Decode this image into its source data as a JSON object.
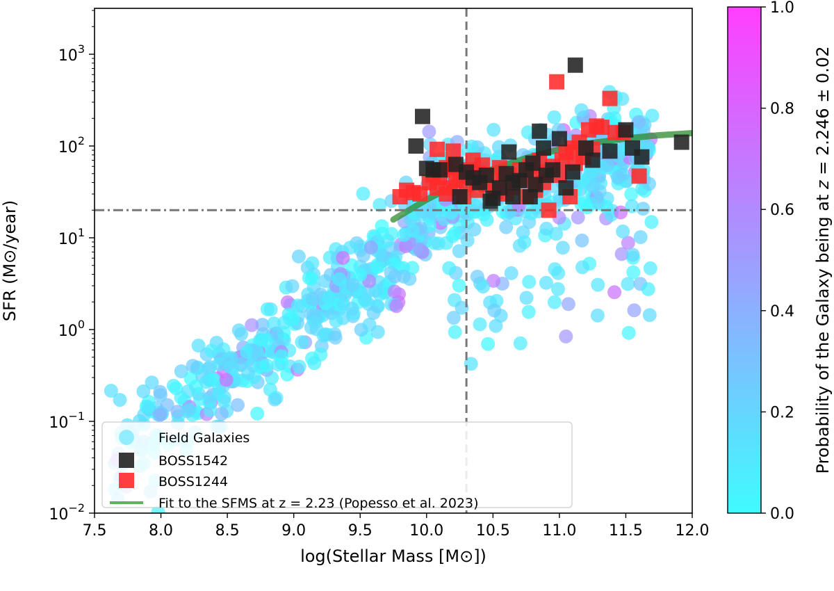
{
  "chart_data": {
    "type": "scatter",
    "xlabel": "log(Stellar Mass [M⊙])",
    "ylabel": "SFR (M⊙/year)",
    "xlim": [
      7.5,
      12.0
    ],
    "ylim_log10": [
      -2,
      3.5
    ],
    "yscale": "log",
    "x_ticks": [
      "7.5",
      "8.0",
      "8.5",
      "9.0",
      "9.5",
      "10.0",
      "10.5",
      "11.0",
      "11.5",
      "12.0"
    ],
    "y_ticks": [
      {
        "base": "10",
        "exp": "−2"
      },
      {
        "base": "10",
        "exp": "−1"
      },
      {
        "base": "10",
        "exp": "0"
      },
      {
        "base": "10",
        "exp": "1"
      },
      {
        "base": "10",
        "exp": "2"
      },
      {
        "base": "10",
        "exp": "3"
      }
    ],
    "reference_lines": {
      "vertical_mass_cut_logM": 10.3,
      "horizontal_sfr_cut": 20
    },
    "colorbar": {
      "label_prefix": "Probability of the Galaxy being at ",
      "label_z": "z",
      "label_suffix": " = 2.246 ± 0.02",
      "range": [
        0.0,
        1.0
      ],
      "ticks": [
        "0.0",
        "0.2",
        "0.4",
        "0.6",
        "0.8",
        "1.0"
      ],
      "color_low": "#3ffbff",
      "color_high": "#ff3fff"
    },
    "legend": {
      "placement": "lower-left",
      "entries": [
        {
          "label": "Field Galaxies",
          "marker": "circle",
          "color": "#7de8ff"
        },
        {
          "label": "BOSS1542",
          "marker": "square",
          "color": "#222222"
        },
        {
          "label": "BOSS1244",
          "marker": "square",
          "color": "#ff2a2a"
        },
        {
          "label": "Fit to the SFMS at z = 2.23 (Popesso et al. 2023)",
          "marker": "line",
          "color": "#5fb35a"
        }
      ]
    },
    "sfms_fit": {
      "label": "Fit to the SFMS at z = 2.23 (Popesso et al. 2023)",
      "color": "#2e8b2e",
      "x_range": [
        9.75,
        12.0
      ],
      "x": [
        9.75,
        10.0,
        10.25,
        10.5,
        10.75,
        11.0,
        11.25,
        11.5,
        11.75,
        12.0
      ],
      "y": [
        15.8,
        26.0,
        40.0,
        56.0,
        74.0,
        92.0,
        108.0,
        121.0,
        131.0,
        138.0
      ]
    },
    "series": [
      {
        "name": "BOSS1542",
        "marker": "square",
        "color": "#222222",
        "points": [
          [
            9.92,
            100
          ],
          [
            9.97,
            210
          ],
          [
            10.0,
            57
          ],
          [
            10.05,
            55
          ],
          [
            10.1,
            55
          ],
          [
            10.22,
            63
          ],
          [
            10.3,
            52
          ],
          [
            10.35,
            45
          ],
          [
            10.4,
            40
          ],
          [
            10.45,
            48
          ],
          [
            10.5,
            27
          ],
          [
            10.55,
            35
          ],
          [
            10.6,
            50
          ],
          [
            10.62,
            86
          ],
          [
            10.65,
            40
          ],
          [
            10.7,
            42
          ],
          [
            10.75,
            55
          ],
          [
            10.78,
            28
          ],
          [
            10.8,
            65
          ],
          [
            10.82,
            38
          ],
          [
            10.85,
            145
          ],
          [
            10.88,
            95
          ],
          [
            10.9,
            48
          ],
          [
            10.95,
            55
          ],
          [
            11.0,
            120
          ],
          [
            11.05,
            35
          ],
          [
            11.1,
            52
          ],
          [
            11.12,
            760
          ],
          [
            11.2,
            95
          ],
          [
            11.25,
            70
          ],
          [
            11.38,
            88
          ],
          [
            11.5,
            150
          ],
          [
            11.55,
            95
          ],
          [
            11.62,
            76
          ],
          [
            11.92,
            110
          ],
          [
            10.48,
            25
          ],
          [
            10.25,
            28
          ],
          [
            10.65,
            28
          ]
        ]
      },
      {
        "name": "BOSS1244",
        "marker": "square",
        "color": "#ff2a2a",
        "points": [
          [
            9.8,
            28
          ],
          [
            9.85,
            33
          ],
          [
            9.9,
            31
          ],
          [
            9.95,
            30
          ],
          [
            10.02,
            40
          ],
          [
            10.05,
            48
          ],
          [
            10.08,
            35
          ],
          [
            10.1,
            45
          ],
          [
            10.12,
            55
          ],
          [
            10.15,
            30
          ],
          [
            10.18,
            35
          ],
          [
            10.2,
            60
          ],
          [
            10.22,
            42
          ],
          [
            10.25,
            48
          ],
          [
            10.28,
            28
          ],
          [
            10.3,
            38
          ],
          [
            10.32,
            55
          ],
          [
            10.35,
            70
          ],
          [
            10.38,
            33
          ],
          [
            10.4,
            50
          ],
          [
            10.42,
            62
          ],
          [
            10.45,
            38
          ],
          [
            10.5,
            45
          ],
          [
            10.52,
            32
          ],
          [
            10.55,
            58
          ],
          [
            10.58,
            40
          ],
          [
            10.6,
            30
          ],
          [
            10.62,
            48
          ],
          [
            10.65,
            35
          ],
          [
            10.7,
            55
          ],
          [
            10.72,
            42
          ],
          [
            10.75,
            28
          ],
          [
            10.78,
            60
          ],
          [
            10.8,
            48
          ],
          [
            10.82,
            33
          ],
          [
            10.85,
            70
          ],
          [
            10.88,
            40
          ],
          [
            10.9,
            52
          ],
          [
            10.92,
            20
          ],
          [
            10.95,
            60
          ],
          [
            10.98,
            500
          ],
          [
            11.0,
            48
          ],
          [
            11.02,
            70
          ],
          [
            11.05,
            85
          ],
          [
            11.08,
            28
          ],
          [
            11.1,
            95
          ],
          [
            11.12,
            65
          ],
          [
            11.15,
            110
          ],
          [
            11.18,
            75
          ],
          [
            11.22,
            150
          ],
          [
            11.25,
            92
          ],
          [
            11.28,
            165
          ],
          [
            11.32,
            160
          ],
          [
            11.38,
            330
          ],
          [
            11.42,
            140
          ],
          [
            11.48,
            140
          ],
          [
            11.6,
            47
          ],
          [
            10.2,
            88
          ],
          [
            10.08,
            92
          ],
          [
            10.15,
            58
          ]
        ]
      }
    ]
  }
}
